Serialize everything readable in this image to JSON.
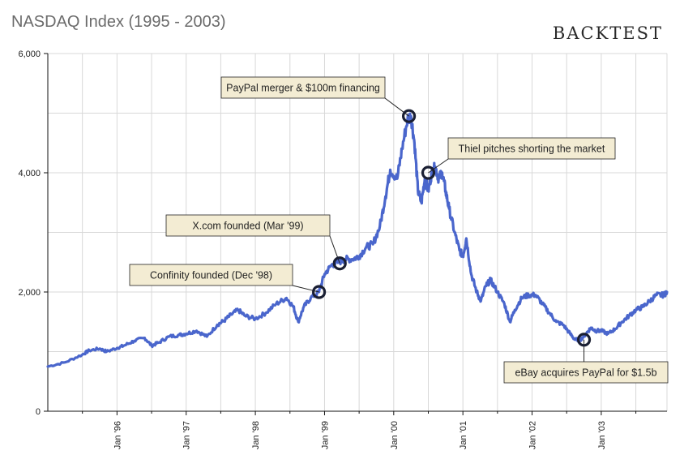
{
  "page": {
    "title": "NASDAQ Index (1995 - 2003)",
    "brand": "BACKTEST"
  },
  "colors": {
    "line": "#4a66cc",
    "grid": "#d8d8d8",
    "annotation_fill": "#f3ecd3",
    "annotation_border": "#222222",
    "marker_stroke": "#1a1f33"
  },
  "chart_data": {
    "type": "line",
    "title": "NASDAQ Index (1995 - 2003)",
    "xlabel": "",
    "ylabel": "",
    "xlim": [
      1995.0,
      2003.95
    ],
    "ylim": [
      0,
      6000
    ],
    "yticks": [
      0,
      2000,
      4000,
      6000
    ],
    "ytick_labels": [
      "0",
      "2,000",
      "4,000",
      "6,000"
    ],
    "xtick_positions": [
      1996,
      1997,
      1998,
      1999,
      2000,
      2001,
      2002,
      2003
    ],
    "xtick_labels": [
      "Jan '96",
      "Jan '97",
      "Jan '98",
      "Jan '99",
      "Jan '00",
      "Jan '01",
      "Jan '02",
      "Jan '03"
    ],
    "minor_xticks": [
      1995.5,
      1996.5,
      1997.5,
      1998.5,
      1999.5,
      2000.5,
      2001.5,
      2002.5,
      2003.5
    ],
    "grid": true,
    "series": [
      {
        "name": "NASDAQ",
        "x": [
          1995.0,
          1995.25,
          1995.5,
          1995.6,
          1995.75,
          1995.85,
          1996.0,
          1996.1,
          1996.25,
          1996.4,
          1996.5,
          1996.6,
          1996.75,
          1996.9,
          1997.0,
          1997.15,
          1997.3,
          1997.45,
          1997.55,
          1997.65,
          1997.75,
          1997.85,
          1998.0,
          1998.15,
          1998.3,
          1998.45,
          1998.55,
          1998.62,
          1998.7,
          1998.8,
          1998.92,
          1999.0,
          1999.1,
          1999.2,
          1999.3,
          1999.4,
          1999.5,
          1999.6,
          1999.7,
          1999.8,
          1999.88,
          1999.95,
          2000.05,
          2000.12,
          2000.2,
          2000.25,
          2000.3,
          2000.35,
          2000.4,
          2000.45,
          2000.5,
          2000.55,
          2000.6,
          2000.65,
          2000.7,
          2000.75,
          2000.8,
          2000.88,
          2000.95,
          2001.0,
          2001.05,
          2001.12,
          2001.2,
          2001.26,
          2001.33,
          2001.4,
          2001.5,
          2001.6,
          2001.68,
          2001.75,
          2001.85,
          2001.95,
          2002.05,
          2002.15,
          2002.25,
          2002.35,
          2002.45,
          2002.55,
          2002.62,
          2002.7,
          2002.78,
          2002.85,
          2002.92,
          2003.0,
          2003.1,
          2003.2,
          2003.3,
          2003.4,
          2003.5,
          2003.6,
          2003.7,
          2003.8,
          2003.9,
          2003.95
        ],
        "y": [
          750,
          820,
          950,
          1020,
          1050,
          1000,
          1060,
          1100,
          1180,
          1230,
          1100,
          1150,
          1250,
          1280,
          1300,
          1350,
          1250,
          1450,
          1520,
          1620,
          1700,
          1600,
          1550,
          1650,
          1800,
          1900,
          1750,
          1500,
          1750,
          1900,
          2000,
          2300,
          2450,
          2500,
          2550,
          2550,
          2600,
          2750,
          2800,
          3100,
          3600,
          4050,
          3900,
          4400,
          4900,
          4950,
          4500,
          3700,
          3500,
          3900,
          3700,
          4000,
          4100,
          3900,
          4000,
          3700,
          3400,
          3000,
          2700,
          2600,
          2900,
          2300,
          2000,
          1850,
          2100,
          2200,
          2000,
          1800,
          1500,
          1700,
          1900,
          1950,
          1950,
          1800,
          1650,
          1500,
          1450,
          1300,
          1200,
          1200,
          1300,
          1400,
          1350,
          1350,
          1300,
          1380,
          1500,
          1600,
          1700,
          1750,
          1850,
          1950,
          1950,
          2000
        ]
      }
    ],
    "annotations": [
      {
        "text": "Confinity founded (Dec '98)",
        "x": 1998.92,
        "y": 2000
      },
      {
        "text": "X.com founded (Mar '99)",
        "x": 1999.22,
        "y": 2480
      },
      {
        "text": "PayPal merger & $100m financing",
        "x": 2000.22,
        "y": 4950
      },
      {
        "text": "Thiel pitches shorting the market",
        "x": 2000.5,
        "y": 4000
      },
      {
        "text": "eBay acquires PayPal for $1.5b",
        "x": 2002.75,
        "y": 1200
      }
    ]
  }
}
